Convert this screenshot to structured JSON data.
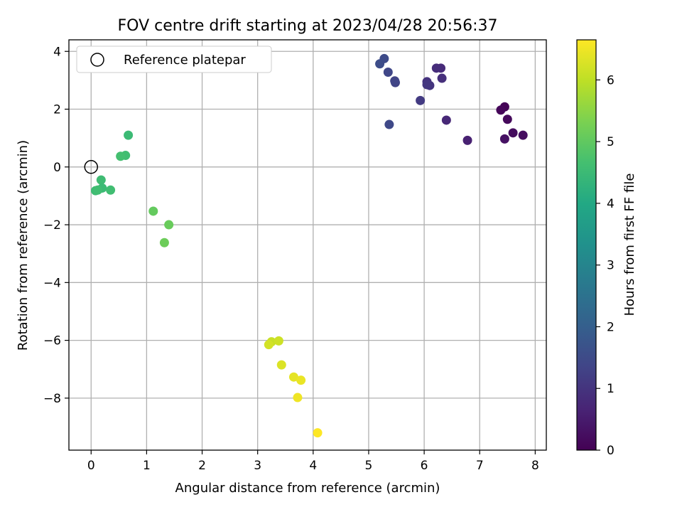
{
  "chart_data": {
    "type": "scatter",
    "title": "FOV centre drift starting at 2023/04/28 20:56:37",
    "xlabel": "Angular distance from reference (arcmin)",
    "ylabel": "Rotation from reference (arcmin)",
    "xlim": [
      -0.4,
      8.2
    ],
    "ylim": [
      -9.8,
      4.4
    ],
    "xticks": [
      0,
      1,
      2,
      3,
      4,
      5,
      6,
      7,
      8
    ],
    "yticks": [
      -8,
      -6,
      -4,
      -2,
      0,
      2,
      4
    ],
    "grid": true,
    "legend": {
      "location": "upper-left",
      "entries": [
        "Reference platepar"
      ]
    },
    "reference_point": {
      "label": "Reference platepar",
      "x": 0.0,
      "y": 0.0,
      "marker": "hollow-circle"
    },
    "colorbar": {
      "label": "Hours from first FF file",
      "range": [
        0,
        6.65
      ],
      "ticks": [
        0,
        1,
        2,
        3,
        4,
        5,
        6
      ],
      "colormap": "viridis"
    },
    "series": [
      {
        "points": [
          {
            "x": 7.45,
            "y": 2.08,
            "hours": 0.05
          },
          {
            "x": 7.38,
            "y": 1.97,
            "hours": 0.1
          },
          {
            "x": 7.5,
            "y": 1.65,
            "hours": 0.15
          },
          {
            "x": 7.6,
            "y": 1.18,
            "hours": 0.2
          },
          {
            "x": 7.78,
            "y": 1.1,
            "hours": 0.25
          },
          {
            "x": 7.45,
            "y": 0.97,
            "hours": 0.3
          },
          {
            "x": 6.78,
            "y": 0.92,
            "hours": 0.6
          },
          {
            "x": 6.4,
            "y": 1.62,
            "hours": 0.75
          },
          {
            "x": 6.3,
            "y": 3.42,
            "hours": 0.8
          },
          {
            "x": 6.22,
            "y": 3.42,
            "hours": 0.85
          },
          {
            "x": 6.32,
            "y": 3.07,
            "hours": 0.9
          },
          {
            "x": 6.05,
            "y": 2.95,
            "hours": 0.95
          },
          {
            "x": 6.1,
            "y": 2.82,
            "hours": 1.0
          },
          {
            "x": 6.05,
            "y": 2.85,
            "hours": 1.05
          },
          {
            "x": 5.93,
            "y": 2.3,
            "hours": 1.15
          },
          {
            "x": 5.48,
            "y": 2.92,
            "hours": 1.3
          },
          {
            "x": 5.47,
            "y": 2.98,
            "hours": 1.35
          },
          {
            "x": 5.35,
            "y": 3.28,
            "hours": 1.4
          },
          {
            "x": 5.37,
            "y": 1.47,
            "hours": 1.45
          },
          {
            "x": 5.28,
            "y": 3.75,
            "hours": 1.5
          },
          {
            "x": 5.2,
            "y": 3.57,
            "hours": 1.55
          },
          {
            "x": 0.67,
            "y": 1.1,
            "hours": 4.5
          },
          {
            "x": 0.62,
            "y": 0.4,
            "hours": 4.6
          },
          {
            "x": 0.53,
            "y": 0.37,
            "hours": 4.65
          },
          {
            "x": 0.18,
            "y": -0.45,
            "hours": 4.55
          },
          {
            "x": 0.2,
            "y": -0.73,
            "hours": 4.5
          },
          {
            "x": 0.08,
            "y": -0.82,
            "hours": 4.55
          },
          {
            "x": 0.12,
            "y": -0.8,
            "hours": 4.6
          },
          {
            "x": 0.35,
            "y": -0.8,
            "hours": 4.6
          },
          {
            "x": 1.12,
            "y": -1.53,
            "hours": 5.05
          },
          {
            "x": 1.4,
            "y": -2.0,
            "hours": 5.1
          },
          {
            "x": 1.32,
            "y": -2.62,
            "hours": 5.15
          },
          {
            "x": 3.25,
            "y": -6.05,
            "hours": 6.1
          },
          {
            "x": 3.38,
            "y": -6.02,
            "hours": 6.15
          },
          {
            "x": 3.2,
            "y": -6.15,
            "hours": 6.2
          },
          {
            "x": 3.43,
            "y": -6.85,
            "hours": 6.3
          },
          {
            "x": 3.65,
            "y": -7.27,
            "hours": 6.4
          },
          {
            "x": 3.78,
            "y": -7.38,
            "hours": 6.45
          },
          {
            "x": 3.72,
            "y": -7.98,
            "hours": 6.5
          },
          {
            "x": 4.08,
            "y": -9.2,
            "hours": 6.65
          }
        ]
      }
    ]
  }
}
